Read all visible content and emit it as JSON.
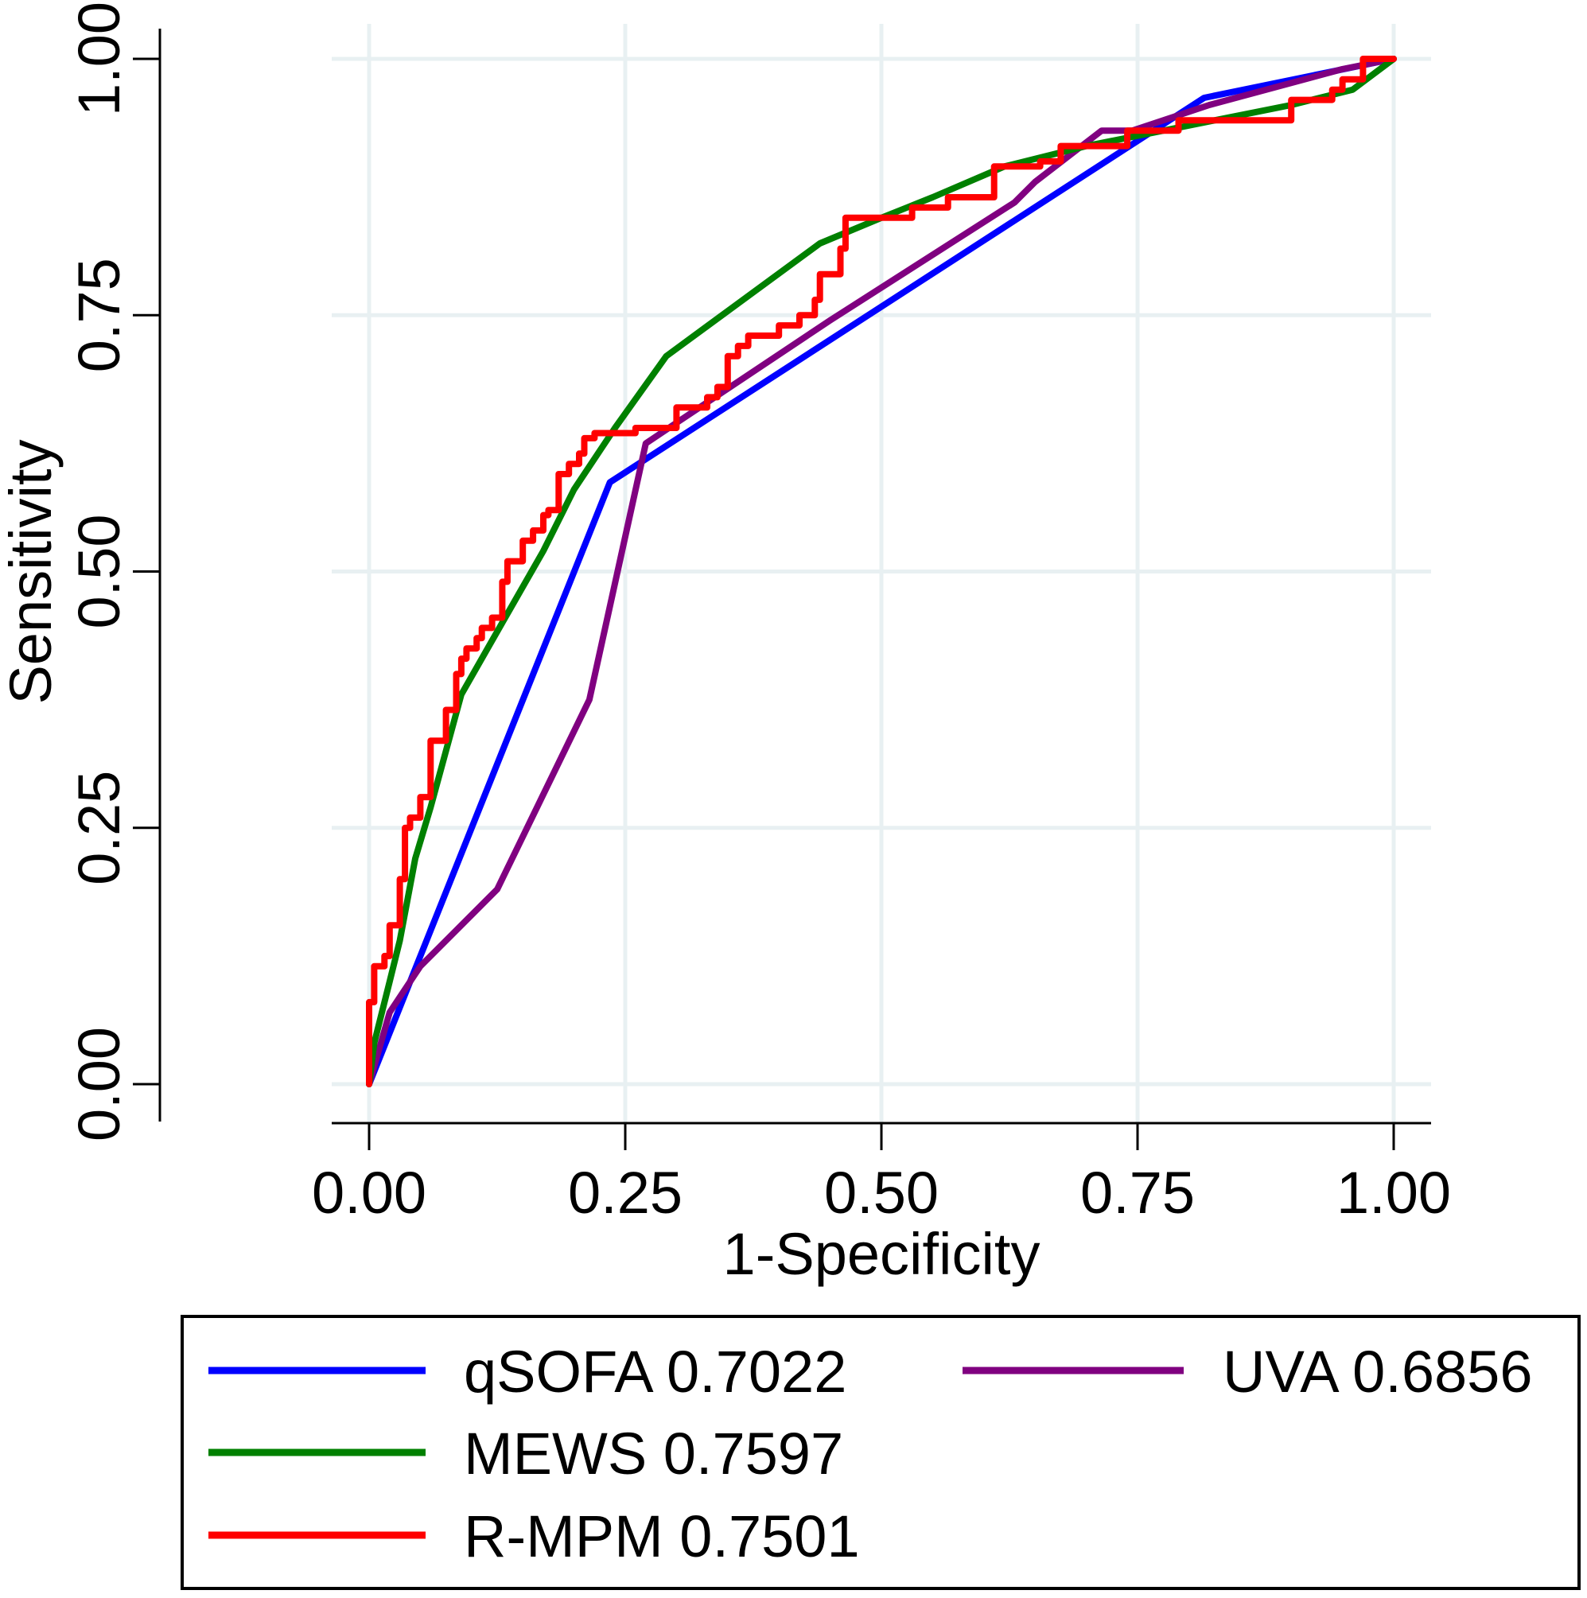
{
  "chart_data": {
    "type": "line",
    "title": "",
    "xlabel": "1-Specificity",
    "ylabel": "Sensitivity",
    "xlim": [
      0,
      1
    ],
    "ylim": [
      0,
      1
    ],
    "xticks": [
      0,
      0.25,
      0.5,
      0.75,
      1
    ],
    "xticklabels": [
      "0.00",
      "0.25",
      "0.50",
      "0.75",
      "1.00"
    ],
    "yticks": [
      0,
      0.25,
      0.5,
      0.75,
      1
    ],
    "yticklabels": [
      "0.00",
      "0.25",
      "0.50",
      "0.75",
      "1.00"
    ],
    "grid": true,
    "grid_color": "#e8f0f2",
    "legend_position": "bottom",
    "series": [
      {
        "label": "qSOFA 0.7022",
        "color": "#0000ff",
        "x": [
          0,
          0.235,
          0.815,
          1
        ],
        "y": [
          0,
          0.587,
          0.962,
          1
        ]
      },
      {
        "label": "MEWS 0.7597",
        "color": "#008000",
        "x": [
          0,
          0.005,
          0.02,
          0.03,
          0.045,
          0.06,
          0.09,
          0.13,
          0.17,
          0.2,
          0.24,
          0.29,
          0.44,
          0.5,
          0.55,
          0.62,
          0.7,
          0.8,
          0.9,
          0.96,
          1
        ],
        "y": [
          0,
          0.04,
          0.1,
          0.14,
          0.22,
          0.27,
          0.38,
          0.45,
          0.52,
          0.58,
          0.64,
          0.71,
          0.82,
          0.845,
          0.865,
          0.895,
          0.915,
          0.935,
          0.955,
          0.97,
          1
        ]
      },
      {
        "label": "R-MPM 0.7501",
        "color": "#ff0000",
        "x": [
          0,
          0,
          0.005,
          0.005,
          0.015,
          0.015,
          0.02,
          0.02,
          0.03,
          0.03,
          0.035,
          0.035,
          0.04,
          0.04,
          0.05,
          0.05,
          0.06,
          0.06,
          0.075,
          0.075,
          0.085,
          0.085,
          0.09,
          0.09,
          0.095,
          0.095,
          0.105,
          0.105,
          0.11,
          0.11,
          0.12,
          0.12,
          0.13,
          0.13,
          0.135,
          0.135,
          0.15,
          0.15,
          0.16,
          0.16,
          0.17,
          0.17,
          0.175,
          0.175,
          0.185,
          0.185,
          0.195,
          0.195,
          0.205,
          0.205,
          0.21,
          0.21,
          0.22,
          0.22,
          0.26,
          0.26,
          0.3,
          0.3,
          0.33,
          0.33,
          0.34,
          0.34,
          0.35,
          0.35,
          0.36,
          0.36,
          0.37,
          0.37,
          0.4,
          0.4,
          0.42,
          0.42,
          0.435,
          0.435,
          0.44,
          0.44,
          0.46,
          0.46,
          0.465,
          0.465,
          0.53,
          0.53,
          0.565,
          0.565,
          0.61,
          0.61,
          0.655,
          0.655,
          0.675,
          0.675,
          0.74,
          0.74,
          0.79,
          0.79,
          0.9,
          0.9,
          0.94,
          0.94,
          0.95,
          0.95,
          0.97,
          0.97,
          1
        ],
        "y": [
          0,
          0.08,
          0.08,
          0.115,
          0.115,
          0.125,
          0.125,
          0.155,
          0.155,
          0.2,
          0.2,
          0.25,
          0.25,
          0.26,
          0.26,
          0.28,
          0.28,
          0.335,
          0.335,
          0.365,
          0.365,
          0.4,
          0.4,
          0.415,
          0.415,
          0.425,
          0.425,
          0.435,
          0.435,
          0.445,
          0.445,
          0.455,
          0.455,
          0.49,
          0.49,
          0.51,
          0.51,
          0.53,
          0.53,
          0.54,
          0.54,
          0.555,
          0.555,
          0.56,
          0.56,
          0.595,
          0.595,
          0.605,
          0.605,
          0.615,
          0.615,
          0.63,
          0.63,
          0.635,
          0.635,
          0.64,
          0.64,
          0.66,
          0.66,
          0.67,
          0.67,
          0.68,
          0.68,
          0.71,
          0.71,
          0.72,
          0.72,
          0.73,
          0.73,
          0.74,
          0.74,
          0.75,
          0.75,
          0.765,
          0.765,
          0.79,
          0.79,
          0.815,
          0.815,
          0.845,
          0.845,
          0.855,
          0.855,
          0.865,
          0.865,
          0.895,
          0.895,
          0.9,
          0.9,
          0.915,
          0.915,
          0.93,
          0.93,
          0.94,
          0.94,
          0.96,
          0.96,
          0.97,
          0.97,
          0.98,
          0.98,
          1,
          1
        ]
      },
      {
        "label": "UVA 0.6856",
        "color": "#800080",
        "x": [
          0,
          0.02,
          0.05,
          0.125,
          0.215,
          0.27,
          0.3,
          0.45,
          0.63,
          0.65,
          0.715,
          0.745,
          0.82,
          0.95,
          1
        ],
        "y": [
          0,
          0.07,
          0.115,
          0.19,
          0.375,
          0.625,
          0.645,
          0.745,
          0.86,
          0.88,
          0.93,
          0.93,
          0.955,
          0.99,
          1
        ]
      }
    ]
  }
}
